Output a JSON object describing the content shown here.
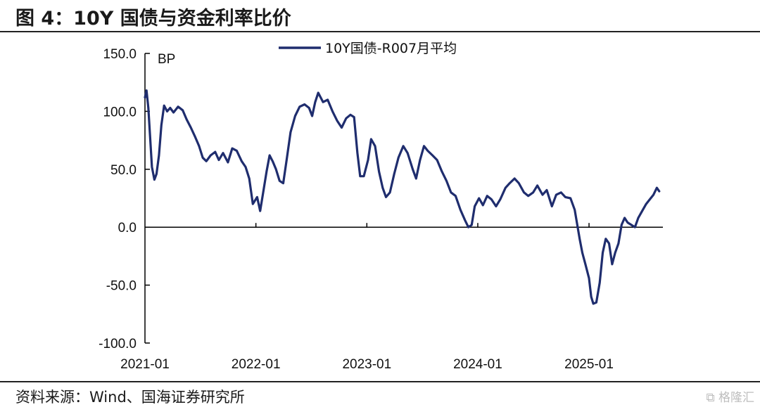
{
  "figure": {
    "title": "图 4：10Y 国债与资金利率比价",
    "source": "资料来源：Wind、国海证券研究所",
    "watermark": "格隆汇"
  },
  "colors": {
    "line": "#1f2d6e",
    "axis": "#000000"
  },
  "chart_data": {
    "type": "line",
    "title": "",
    "xlabel": "",
    "ylabel": "BP",
    "ylim": [
      -100,
      150
    ],
    "yticks": [
      "150.0",
      "100.0",
      "50.0",
      "0.0",
      "-50.0",
      "-100.0"
    ],
    "ytick_values": [
      150,
      100,
      50,
      0,
      -50,
      -100
    ],
    "xlim": [
      "2021-01-01",
      "2025-09-01"
    ],
    "xticks": [
      "2021-01",
      "2022-01",
      "2023-01",
      "2024-01",
      "2025-01"
    ],
    "xtick_values": [
      "2021-01-01",
      "2022-01-01",
      "2023-01-01",
      "2024-01-01",
      "2025-01-01"
    ],
    "legend": {
      "position": "top-center"
    },
    "grid": false,
    "series": [
      {
        "name": "10Y国债-R007月平均",
        "points": [
          [
            "2021-01-01",
            112
          ],
          [
            "2021-01-06",
            118
          ],
          [
            "2021-01-12",
            103
          ],
          [
            "2021-01-18",
            78
          ],
          [
            "2021-01-24",
            52
          ],
          [
            "2021-02-01",
            41
          ],
          [
            "2021-02-08",
            46
          ],
          [
            "2021-02-16",
            62
          ],
          [
            "2021-02-24",
            88
          ],
          [
            "2021-03-05",
            105
          ],
          [
            "2021-03-15",
            100
          ],
          [
            "2021-03-25",
            103
          ],
          [
            "2021-04-05",
            99
          ],
          [
            "2021-04-20",
            104
          ],
          [
            "2021-05-05",
            101
          ],
          [
            "2021-05-18",
            93
          ],
          [
            "2021-06-01",
            86
          ],
          [
            "2021-06-15",
            78
          ],
          [
            "2021-06-28",
            70
          ],
          [
            "2021-07-10",
            60
          ],
          [
            "2021-07-22",
            57
          ],
          [
            "2021-08-05",
            62
          ],
          [
            "2021-08-20",
            65
          ],
          [
            "2021-09-01",
            58
          ],
          [
            "2021-09-15",
            64
          ],
          [
            "2021-10-01",
            56
          ],
          [
            "2021-10-15",
            68
          ],
          [
            "2021-10-30",
            66
          ],
          [
            "2021-11-15",
            57
          ],
          [
            "2021-11-28",
            52
          ],
          [
            "2021-12-10",
            42
          ],
          [
            "2021-12-22",
            20
          ],
          [
            "2022-01-05",
            26
          ],
          [
            "2022-01-15",
            14
          ],
          [
            "2022-01-25",
            30
          ],
          [
            "2022-02-05",
            48
          ],
          [
            "2022-02-15",
            62
          ],
          [
            "2022-02-25",
            57
          ],
          [
            "2022-03-08",
            50
          ],
          [
            "2022-03-20",
            40
          ],
          [
            "2022-04-01",
            38
          ],
          [
            "2022-04-12",
            58
          ],
          [
            "2022-04-25",
            82
          ],
          [
            "2022-05-10",
            96
          ],
          [
            "2022-05-25",
            104
          ],
          [
            "2022-06-10",
            106
          ],
          [
            "2022-06-25",
            103
          ],
          [
            "2022-07-05",
            96
          ],
          [
            "2022-07-15",
            108
          ],
          [
            "2022-07-25",
            116
          ],
          [
            "2022-08-10",
            108
          ],
          [
            "2022-08-25",
            110
          ],
          [
            "2022-09-10",
            100
          ],
          [
            "2022-09-25",
            92
          ],
          [
            "2022-10-10",
            86
          ],
          [
            "2022-10-25",
            94
          ],
          [
            "2022-11-08",
            97
          ],
          [
            "2022-11-20",
            95
          ],
          [
            "2022-12-01",
            64
          ],
          [
            "2022-12-10",
            44
          ],
          [
            "2022-12-22",
            44
          ],
          [
            "2023-01-05",
            58
          ],
          [
            "2023-01-15",
            76
          ],
          [
            "2023-01-28",
            70
          ],
          [
            "2023-02-10",
            48
          ],
          [
            "2023-02-22",
            34
          ],
          [
            "2023-03-05",
            26
          ],
          [
            "2023-03-18",
            30
          ],
          [
            "2023-04-01",
            46
          ],
          [
            "2023-04-15",
            60
          ],
          [
            "2023-05-01",
            70
          ],
          [
            "2023-05-15",
            64
          ],
          [
            "2023-06-01",
            50
          ],
          [
            "2023-06-12",
            42
          ],
          [
            "2023-06-25",
            58
          ],
          [
            "2023-07-08",
            70
          ],
          [
            "2023-07-20",
            66
          ],
          [
            "2023-08-05",
            62
          ],
          [
            "2023-08-20",
            58
          ],
          [
            "2023-09-05",
            48
          ],
          [
            "2023-09-20",
            40
          ],
          [
            "2023-10-05",
            30
          ],
          [
            "2023-10-20",
            27
          ],
          [
            "2023-11-05",
            15
          ],
          [
            "2023-11-20",
            6
          ],
          [
            "2023-12-01",
            0
          ],
          [
            "2023-12-12",
            2
          ],
          [
            "2023-12-22",
            18
          ],
          [
            "2024-01-05",
            25
          ],
          [
            "2024-01-18",
            19
          ],
          [
            "2024-02-01",
            27
          ],
          [
            "2024-02-15",
            24
          ],
          [
            "2024-03-01",
            18
          ],
          [
            "2024-03-15",
            24
          ],
          [
            "2024-04-01",
            34
          ],
          [
            "2024-04-15",
            38
          ],
          [
            "2024-05-01",
            42
          ],
          [
            "2024-05-15",
            38
          ],
          [
            "2024-06-01",
            30
          ],
          [
            "2024-06-15",
            27
          ],
          [
            "2024-07-01",
            30
          ],
          [
            "2024-07-15",
            36
          ],
          [
            "2024-08-01",
            28
          ],
          [
            "2024-08-15",
            32
          ],
          [
            "2024-09-01",
            18
          ],
          [
            "2024-09-15",
            28
          ],
          [
            "2024-10-01",
            30
          ],
          [
            "2024-10-15",
            26
          ],
          [
            "2024-11-01",
            25
          ],
          [
            "2024-11-15",
            15
          ],
          [
            "2024-12-01",
            -10
          ],
          [
            "2024-12-10",
            -22
          ],
          [
            "2024-12-20",
            -32
          ],
          [
            "2025-01-01",
            -44
          ],
          [
            "2025-01-08",
            -60
          ],
          [
            "2025-01-15",
            -66
          ],
          [
            "2025-01-25",
            -65
          ],
          [
            "2025-02-05",
            -48
          ],
          [
            "2025-02-15",
            -22
          ],
          [
            "2025-02-25",
            -10
          ],
          [
            "2025-03-08",
            -14
          ],
          [
            "2025-03-18",
            -32
          ],
          [
            "2025-03-28",
            -22
          ],
          [
            "2025-04-08",
            -14
          ],
          [
            "2025-04-18",
            2
          ],
          [
            "2025-04-28",
            8
          ],
          [
            "2025-05-08",
            4
          ],
          [
            "2025-05-20",
            2
          ],
          [
            "2025-06-01",
            0
          ],
          [
            "2025-06-12",
            8
          ],
          [
            "2025-06-25",
            14
          ],
          [
            "2025-07-08",
            20
          ],
          [
            "2025-07-20",
            24
          ],
          [
            "2025-08-01",
            28
          ],
          [
            "2025-08-12",
            34
          ],
          [
            "2025-08-20",
            31
          ]
        ]
      }
    ]
  }
}
